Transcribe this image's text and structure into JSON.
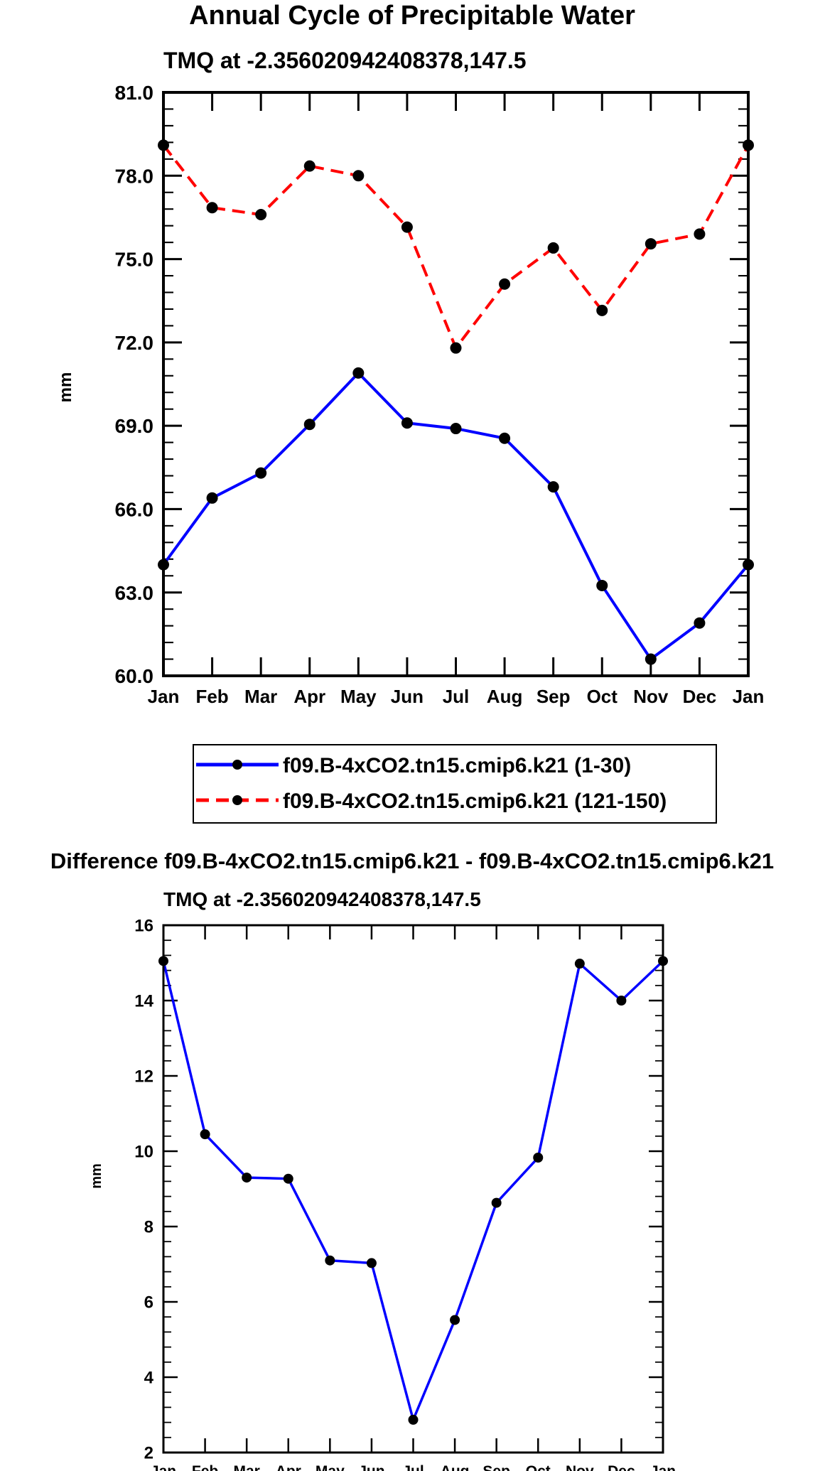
{
  "chart_data": [
    {
      "type": "line",
      "title": "Annual Cycle of Precipitable Water",
      "subtitle": "TMQ at -2.356020942408378,147.5",
      "xlabel": "",
      "ylabel": "mm",
      "categories": [
        "Jan",
        "Feb",
        "Mar",
        "Apr",
        "May",
        "Jun",
        "Jul",
        "Aug",
        "Sep",
        "Oct",
        "Nov",
        "Dec",
        "Jan"
      ],
      "ylim": [
        60.0,
        81.0
      ],
      "yticks": [
        "60.0",
        "63.0",
        "66.0",
        "69.0",
        "72.0",
        "75.0",
        "78.0",
        "81.0"
      ],
      "legend_position": "below",
      "series": [
        {
          "name": "f09.B-4xCO2.tn15.cmip6.k21 (1-30)",
          "color": "#0000ff",
          "dash": "solid",
          "values": [
            64.0,
            66.4,
            67.3,
            69.05,
            70.9,
            69.1,
            68.9,
            68.55,
            66.8,
            63.25,
            60.6,
            61.9,
            64.0
          ]
        },
        {
          "name": "f09.B-4xCO2.tn15.cmip6.k21 (121-150)",
          "color": "#ff0000",
          "dash": "dashed",
          "values": [
            79.1,
            76.85,
            76.6,
            78.35,
            78.0,
            76.15,
            71.8,
            74.1,
            75.4,
            73.15,
            75.55,
            75.9,
            79.1
          ]
        }
      ]
    },
    {
      "type": "line",
      "title": "Difference f09.B-4xCO2.tn15.cmip6.k21 - f09.B-4xCO2.tn15.cmip6.k21",
      "subtitle": "TMQ at -2.356020942408378,147.5",
      "xlabel": "",
      "ylabel": "mm",
      "categories": [
        "Jan",
        "Feb",
        "Mar",
        "Apr",
        "May",
        "Jun",
        "Jul",
        "Aug",
        "Sep",
        "Oct",
        "Nov",
        "Dec",
        "Jan"
      ],
      "ylim": [
        2,
        16
      ],
      "yticks": [
        "2",
        "4",
        "6",
        "8",
        "10",
        "12",
        "14",
        "16"
      ],
      "series": [
        {
          "name": "Difference",
          "color": "#0000ff",
          "dash": "solid",
          "values": [
            15.05,
            10.45,
            9.3,
            9.27,
            7.1,
            7.03,
            2.87,
            5.52,
            8.63,
            9.83,
            14.98,
            14.0,
            15.05
          ]
        }
      ]
    }
  ]
}
